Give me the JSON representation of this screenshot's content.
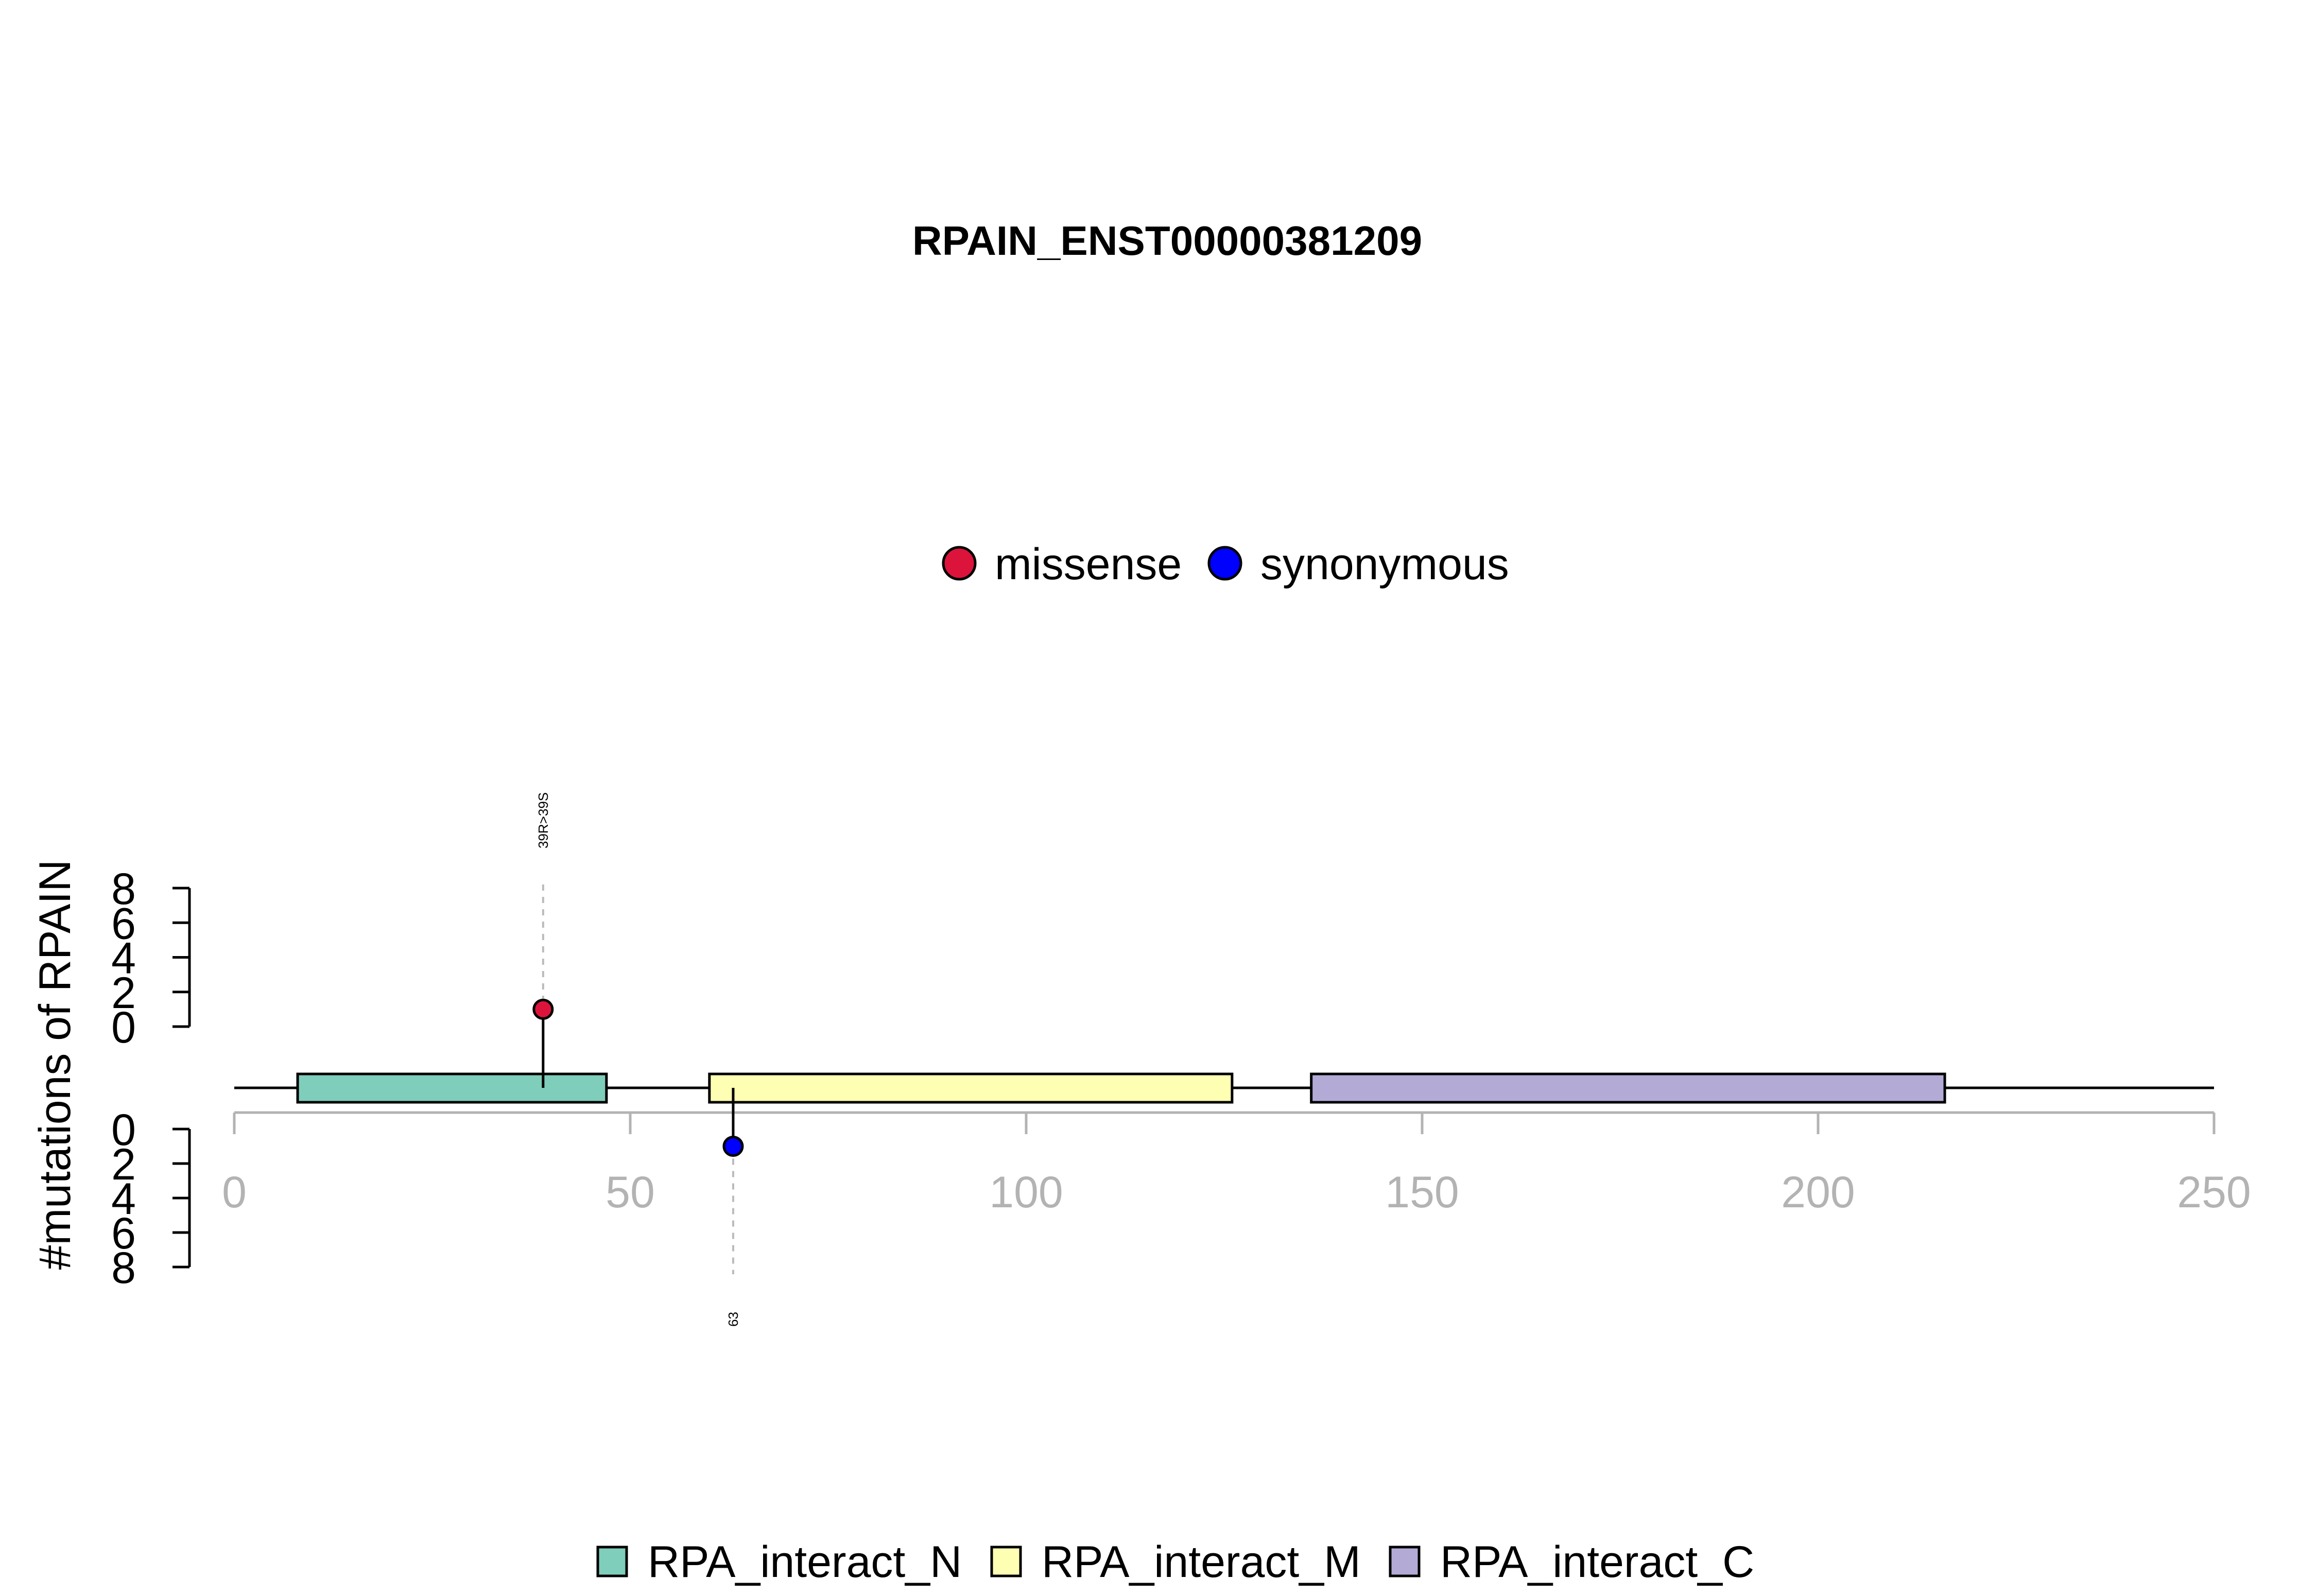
{
  "chart_data": {
    "type": "lollipop",
    "title": "RPAIN_ENST00000381209",
    "ylabel": "#mutations of RPAIN",
    "xlim": [
      0,
      250
    ],
    "x_ticks": [
      "0",
      "50",
      "100",
      "150",
      "200",
      "250"
    ],
    "y_ticks": [
      "0",
      "2",
      "4",
      "6",
      "8"
    ],
    "ylim": [
      0,
      8
    ],
    "protein_length": 250,
    "domains": [
      {
        "name": "RPA_interact_N",
        "start": 8,
        "end": 47,
        "color": "#7fcdbb"
      },
      {
        "name": "RPA_interact_M",
        "start": 60,
        "end": 126,
        "color": "#ffffb3"
      },
      {
        "name": "RPA_interact_C",
        "start": 136,
        "end": 216,
        "color": "#b3aad6"
      }
    ],
    "mutation_types": [
      {
        "name": "missense",
        "color": "#dc143c"
      },
      {
        "name": "synonymous",
        "color": "#0000ff"
      }
    ],
    "mutations": [
      {
        "position": 39,
        "count": 1,
        "type": "missense",
        "strand": "top",
        "label": "39R>39S"
      },
      {
        "position": 63,
        "count": 1,
        "type": "synonymous",
        "strand": "bottom",
        "label": "63"
      }
    ]
  }
}
